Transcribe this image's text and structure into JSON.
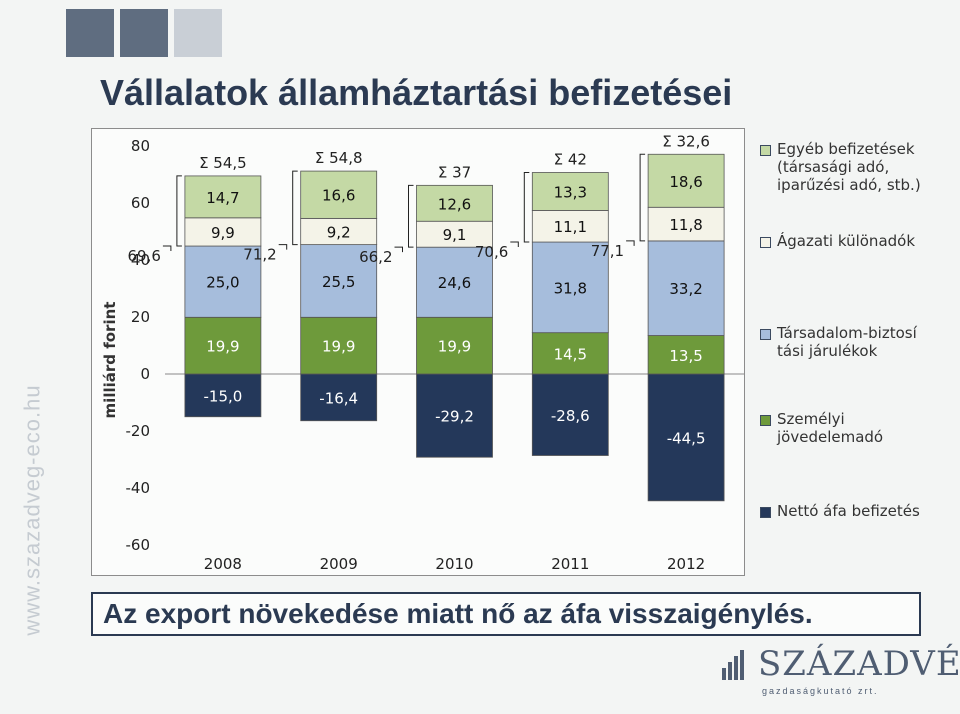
{
  "title": "Vállalatok államháztartási befizetései",
  "side_url": "www.szazadveg-eco.hu",
  "banner": "Az export növekedése miatt nő az áfa visszaigénylés.",
  "logo": {
    "name": "SZÁZADVÉG",
    "tagline": "gazdaságkutató zrt."
  },
  "legend": [
    {
      "label": "Egyéb befizetések\n(társasági adó,\niparűzési adó, stb.)",
      "color": "#c4d9a5"
    },
    {
      "label": "Ágazati különadók",
      "color": "#f4f3e8"
    },
    {
      "label": "Társadalom-biztosí\ntási járulékok",
      "color": "#a6bddc"
    },
    {
      "label": "Személyi\njövedelemadó",
      "color": "#6e9a3b"
    },
    {
      "label": "Nettó áfa befizetés",
      "color": "#24385a"
    }
  ],
  "chart_data": {
    "type": "bar",
    "stacked": true,
    "title": "Vállalatok államháztartási befizetései",
    "ylabel": "milliárd forint",
    "xlabel": "",
    "ylim": [
      -60,
      80
    ],
    "yticks": [
      80,
      60,
      40,
      20,
      0,
      -20,
      -40,
      -60
    ],
    "categories": [
      "2008",
      "2009",
      "2010",
      "2011",
      "2012"
    ],
    "series": [
      {
        "name": "Nettó áfa befizetés",
        "color": "#24385a",
        "labelColor": "#ffffff",
        "labels": [
          "-15,0",
          "-16,4",
          "-29,2",
          "-28,6",
          "-44,5"
        ],
        "values": [
          -15.0,
          -16.4,
          -29.2,
          -28.6,
          -44.5
        ]
      },
      {
        "name": "Személyi jövedelemadó",
        "color": "#6e9a3b",
        "labelColor": "#ffffff",
        "labels": [
          "19,9",
          "19,9",
          "19,9",
          "14,5",
          "13,5"
        ],
        "values": [
          19.9,
          19.9,
          19.9,
          14.5,
          13.5
        ]
      },
      {
        "name": "Társadalom-biztosítási járulékok",
        "color": "#a6bddc",
        "labelColor": "#111111",
        "labels": [
          "25,0",
          "25,5",
          "24,6",
          "31,8",
          "33,2"
        ],
        "values": [
          25.0,
          25.5,
          24.6,
          31.8,
          33.2
        ]
      },
      {
        "name": "Ágazati különadók",
        "color": "#f4f3e8",
        "labelColor": "#111111",
        "labels": [
          "9,9",
          "9,2",
          "9,1",
          "11,1",
          "11,8"
        ],
        "values": [
          9.9,
          9.2,
          9.1,
          11.1,
          11.8
        ]
      },
      {
        "name": "Egyéb befizetések",
        "color": "#c4d9a5",
        "labelColor": "#111111",
        "labels": [
          "14,7",
          "16,6",
          "12,6",
          "13,3",
          "18,6"
        ],
        "values": [
          14.7,
          16.6,
          12.6,
          13.3,
          18.6
        ]
      }
    ],
    "totals": [
      "Σ 54,5",
      "Σ 54,8",
      "Σ 37",
      "Σ 42",
      "Σ 32,6"
    ],
    "bracket_labels": [
      "69,6",
      "71,2",
      "66,2",
      "70,6",
      "77,1"
    ]
  }
}
